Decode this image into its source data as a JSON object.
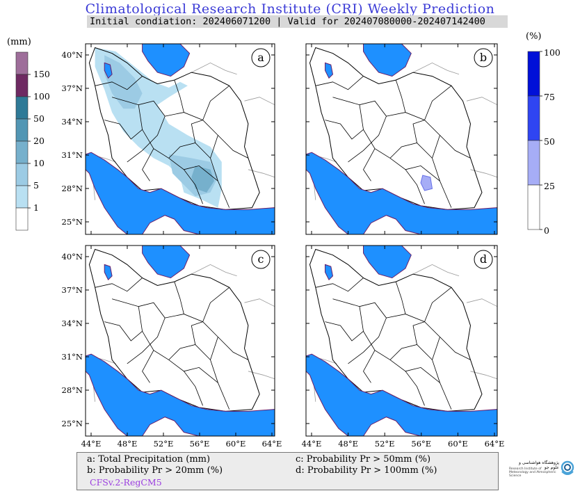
{
  "header": {
    "title": "Climatological Research Institute (CRI) Weekly Prediction",
    "subtitle": "Initial condiation: 202406071200 | Valid for 202407080000-202407142400"
  },
  "legend_left": {
    "unit": "(mm)",
    "levels": [
      "150",
      "100",
      "50",
      "20",
      "10",
      "5",
      "1"
    ],
    "colors": [
      "#9e6e9a",
      "#6e2a62",
      "#2f7a97",
      "#5296b4",
      "#76b0cc",
      "#9ccbe4",
      "#b9e0f2",
      "#ffffff"
    ]
  },
  "legend_right": {
    "unit": "(%)",
    "levels": [
      "100",
      "75",
      "50",
      "25",
      "0"
    ],
    "colors": [
      "#0010d8",
      "#2f45f2",
      "#a6adf6",
      "#ffffff"
    ]
  },
  "panels": [
    {
      "id": "a",
      "label": "a"
    },
    {
      "id": "b",
      "label": "b"
    },
    {
      "id": "c",
      "label": "c"
    },
    {
      "id": "d",
      "label": "d"
    }
  ],
  "axes": {
    "lat_ticks": [
      "40°N",
      "37°N",
      "34°N",
      "31°N",
      "28°N",
      "25°N"
    ],
    "lon_ticks": [
      "44°E",
      "48°E",
      "52°E",
      "56°E",
      "60°E",
      "64°E"
    ]
  },
  "colors": {
    "sea": "#1e90ff",
    "border": "#000000",
    "title": "#3b3bd6"
  },
  "footer": {
    "line_a": "a: Total Precipitation (mm)",
    "line_b": "b: Probability Pr > 20mm (%)",
    "line_c": "c: Probability Pr > 50mm (%)",
    "line_d": "d: Probability Pr > 100mm (%)",
    "model": "CFSv.2-RegCM5"
  },
  "logo": {
    "icon": "institute-logo-icon",
    "text": "پژوهشگاه هواشناسی و علوم جو",
    "sub": "Research Institute of Meteorology and Atmospheric Science"
  }
}
